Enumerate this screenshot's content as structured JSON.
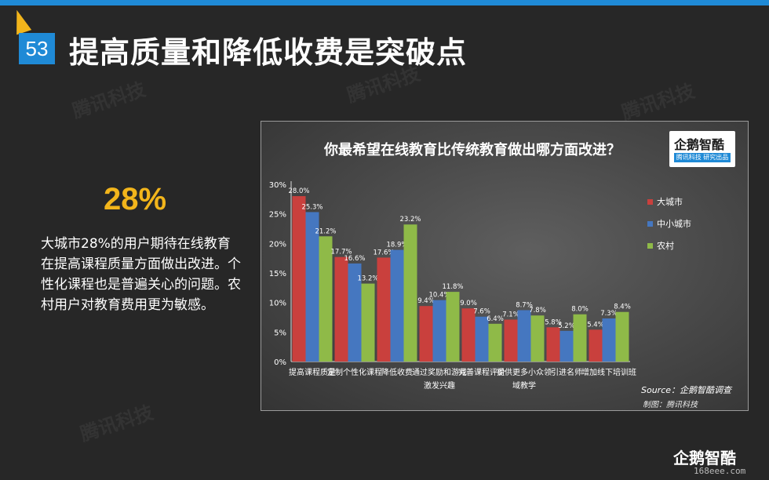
{
  "slide": {
    "number": "53",
    "title": "提高质量和降低收费是突破点",
    "watermark": "腾讯科技"
  },
  "highlight": {
    "percent": "28%",
    "text": "大城市28%的用户期待在线教育在提高课程质量方面做出改进。个性化课程也是普遍关心的问题。农村用户对教育费用更为敏感。"
  },
  "chart_logo": {
    "name": "企鹅智酷",
    "sub": "腾讯科技  研究出品"
  },
  "footer": {
    "logo": "企鹅智酷",
    "site": "168eee.com"
  },
  "chart_data": {
    "type": "bar",
    "title": "你最希望在线教育比传统教育做出哪方面改进？",
    "categories": [
      [
        "提高课程质量"
      ],
      [
        "定制个性化课程"
      ],
      [
        "降低收费"
      ],
      [
        "通过奖励和游戏",
        "激发兴趣"
      ],
      [
        "完善课程评价"
      ],
      [
        "提供更多小众领",
        "域教学"
      ],
      [
        "引进名师"
      ],
      [
        "增加线下培训班"
      ]
    ],
    "series": [
      {
        "name": "大城市",
        "color": "#c9403d",
        "values": [
          28.0,
          17.7,
          17.6,
          9.4,
          9.0,
          7.1,
          5.8,
          5.4
        ]
      },
      {
        "name": "中小城市",
        "color": "#4577c0",
        "values": [
          25.3,
          16.6,
          18.9,
          10.4,
          7.6,
          8.7,
          5.2,
          7.3
        ]
      },
      {
        "name": "农村",
        "color": "#8fba48",
        "values": [
          21.2,
          13.2,
          23.2,
          11.8,
          6.4,
          7.8,
          8.0,
          8.4
        ]
      }
    ],
    "ylim": [
      0,
      30
    ],
    "yticks": [
      "0%",
      "5%",
      "10%",
      "15%",
      "20%",
      "25%",
      "30%"
    ],
    "value_suffix": "%",
    "legend": "right",
    "source": "Source：企鹅智酷调查",
    "credit": "制图：腾讯科技"
  }
}
